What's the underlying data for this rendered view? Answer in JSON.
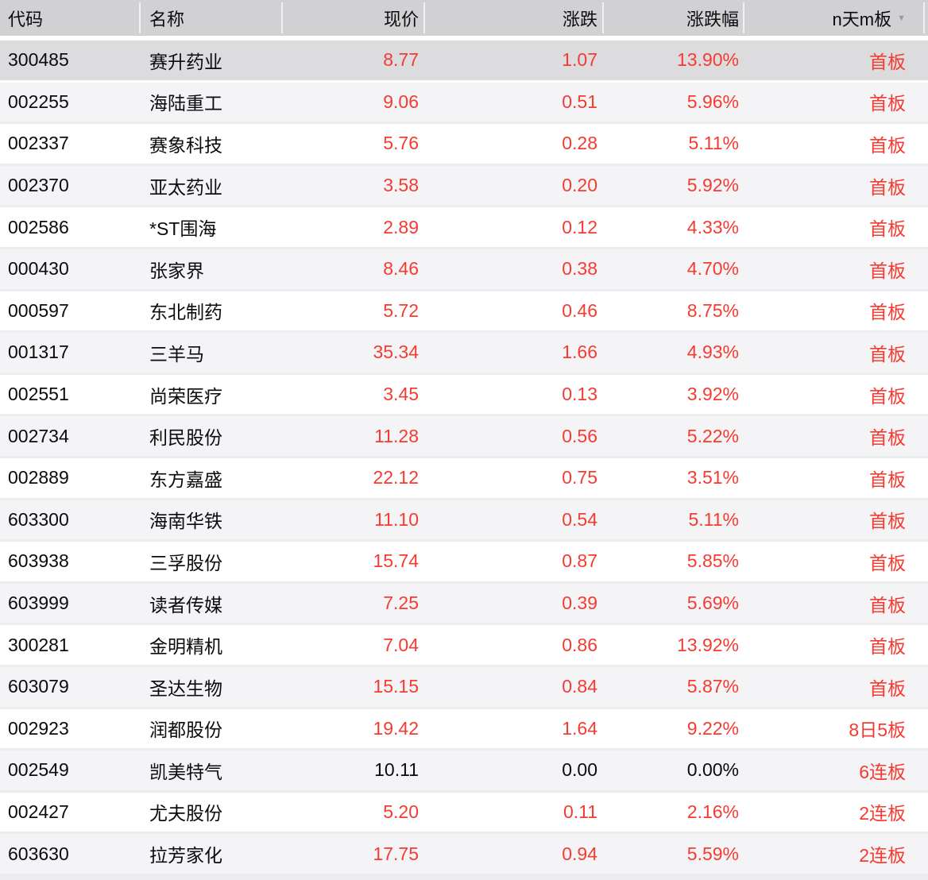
{
  "colors": {
    "up_red": "#f53b30",
    "flat_black": "#0b0b0d",
    "header_bg": "#d1d1d3",
    "selected_row_bg": "#dcdcde",
    "alt_row_bg": "#f4f4f6"
  },
  "table": {
    "sort_icon": "▼",
    "columns": [
      {
        "key": "code",
        "label": "代码"
      },
      {
        "key": "name",
        "label": "名称"
      },
      {
        "key": "price",
        "label": "现价"
      },
      {
        "key": "change",
        "label": "涨跌"
      },
      {
        "key": "change_pct",
        "label": "涨跌幅"
      },
      {
        "key": "board",
        "label": "n天m板"
      }
    ],
    "rows": [
      {
        "code": "300485",
        "name": "赛升药业",
        "price": "8.77",
        "change": "1.07",
        "change_pct": "13.90%",
        "board": "首板",
        "selected": true
      },
      {
        "code": "002255",
        "name": "海陆重工",
        "price": "9.06",
        "change": "0.51",
        "change_pct": "5.96%",
        "board": "首板"
      },
      {
        "code": "002337",
        "name": "赛象科技",
        "price": "5.76",
        "change": "0.28",
        "change_pct": "5.11%",
        "board": "首板"
      },
      {
        "code": "002370",
        "name": "亚太药业",
        "price": "3.58",
        "change": "0.20",
        "change_pct": "5.92%",
        "board": "首板"
      },
      {
        "code": "002586",
        "name": "*ST围海",
        "price": "2.89",
        "change": "0.12",
        "change_pct": "4.33%",
        "board": "首板"
      },
      {
        "code": "000430",
        "name": "张家界",
        "price": "8.46",
        "change": "0.38",
        "change_pct": "4.70%",
        "board": "首板"
      },
      {
        "code": "000597",
        "name": "东北制药",
        "price": "5.72",
        "change": "0.46",
        "change_pct": "8.75%",
        "board": "首板"
      },
      {
        "code": "001317",
        "name": "三羊马",
        "price": "35.34",
        "change": "1.66",
        "change_pct": "4.93%",
        "board": "首板"
      },
      {
        "code": "002551",
        "name": "尚荣医疗",
        "price": "3.45",
        "change": "0.13",
        "change_pct": "3.92%",
        "board": "首板"
      },
      {
        "code": "002734",
        "name": "利民股份",
        "price": "11.28",
        "change": "0.56",
        "change_pct": "5.22%",
        "board": "首板"
      },
      {
        "code": "002889",
        "name": "东方嘉盛",
        "price": "22.12",
        "change": "0.75",
        "change_pct": "3.51%",
        "board": "首板"
      },
      {
        "code": "603300",
        "name": "海南华铁",
        "price": "11.10",
        "change": "0.54",
        "change_pct": "5.11%",
        "board": "首板"
      },
      {
        "code": "603938",
        "name": "三孚股份",
        "price": "15.74",
        "change": "0.87",
        "change_pct": "5.85%",
        "board": "首板"
      },
      {
        "code": "603999",
        "name": "读者传媒",
        "price": "7.25",
        "change": "0.39",
        "change_pct": "5.69%",
        "board": "首板"
      },
      {
        "code": "300281",
        "name": "金明精机",
        "price": "7.04",
        "change": "0.86",
        "change_pct": "13.92%",
        "board": "首板"
      },
      {
        "code": "603079",
        "name": "圣达生物",
        "price": "15.15",
        "change": "0.84",
        "change_pct": "5.87%",
        "board": "首板"
      },
      {
        "code": "002923",
        "name": "润都股份",
        "price": "19.42",
        "change": "1.64",
        "change_pct": "9.22%",
        "board": "8日5板"
      },
      {
        "code": "002549",
        "name": "凯美特气",
        "price": "10.11",
        "change": "0.00",
        "change_pct": "0.00%",
        "board": "6连板",
        "flat": true
      },
      {
        "code": "002427",
        "name": "尤夫股份",
        "price": "5.20",
        "change": "0.11",
        "change_pct": "2.16%",
        "board": "2连板"
      },
      {
        "code": "603630",
        "name": "拉芳家化",
        "price": "17.75",
        "change": "0.94",
        "change_pct": "5.59%",
        "board": "2连板"
      }
    ]
  }
}
